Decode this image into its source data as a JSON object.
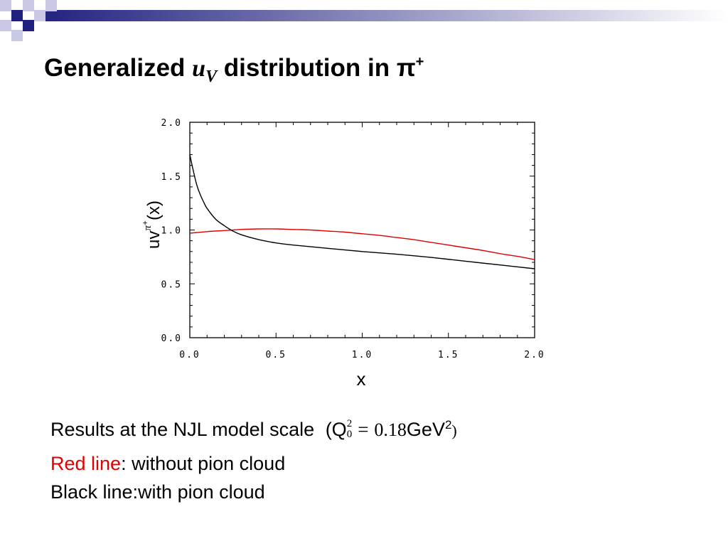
{
  "slide": {
    "title_pre": "Generalized ",
    "title_math": "u",
    "title_math_sub": "V",
    "title_post": " distribution in π",
    "title_sup": "+"
  },
  "body": {
    "line1": "Results at the NJL model scale",
    "formula_open": "(Q",
    "formula_sup": "2",
    "formula_sub": "0",
    "formula_eq": "=",
    "formula_value": "0.18",
    "formula_unit": "GeV",
    "formula_unit_sup": "2",
    "formula_close": ")",
    "line2_red": "Red line",
    "line2_rest": ": without pion cloud",
    "line3": "Black line:with pion cloud"
  },
  "colors": {
    "accent": "#20207f",
    "accent_light": "#c9c9e6",
    "red_line": "#e00000",
    "black_line": "#000000"
  },
  "chart_data": {
    "type": "line",
    "title": "",
    "xlabel": "x",
    "ylabel": "uv π+ (x)",
    "xlim": [
      0.0,
      2.0
    ],
    "ylim": [
      0.0,
      2.0
    ],
    "xticks": [
      "0.0",
      "0.5",
      "1.0",
      "1.5",
      "2.0"
    ],
    "yticks": [
      "0.0",
      "0.5",
      "1.0",
      "1.5",
      "2.0"
    ],
    "grid": false,
    "series": [
      {
        "color": "#e00000",
        "x": [
          0.0,
          0.1,
          0.2,
          0.3,
          0.4,
          0.5,
          0.6,
          0.7,
          0.8,
          0.9,
          1.0,
          1.1,
          1.2,
          1.3,
          1.4,
          1.5,
          1.6,
          1.7,
          1.8,
          1.9,
          2.0
        ],
        "y": [
          0.97,
          0.985,
          0.995,
          1.005,
          1.01,
          1.01,
          1.005,
          1.0,
          0.99,
          0.98,
          0.965,
          0.95,
          0.93,
          0.91,
          0.885,
          0.86,
          0.835,
          0.81,
          0.78,
          0.755,
          0.725
        ]
      },
      {
        "color": "#000000",
        "x": [
          0.0,
          0.02,
          0.04,
          0.06,
          0.08,
          0.1,
          0.15,
          0.2,
          0.25,
          0.3,
          0.4,
          0.5,
          0.6,
          0.8,
          1.0,
          1.2,
          1.4,
          1.6,
          1.8,
          2.0
        ],
        "y": [
          1.7,
          1.55,
          1.42,
          1.33,
          1.26,
          1.2,
          1.1,
          1.04,
          0.99,
          0.955,
          0.91,
          0.88,
          0.86,
          0.83,
          0.8,
          0.775,
          0.745,
          0.71,
          0.675,
          0.64
        ]
      }
    ]
  }
}
